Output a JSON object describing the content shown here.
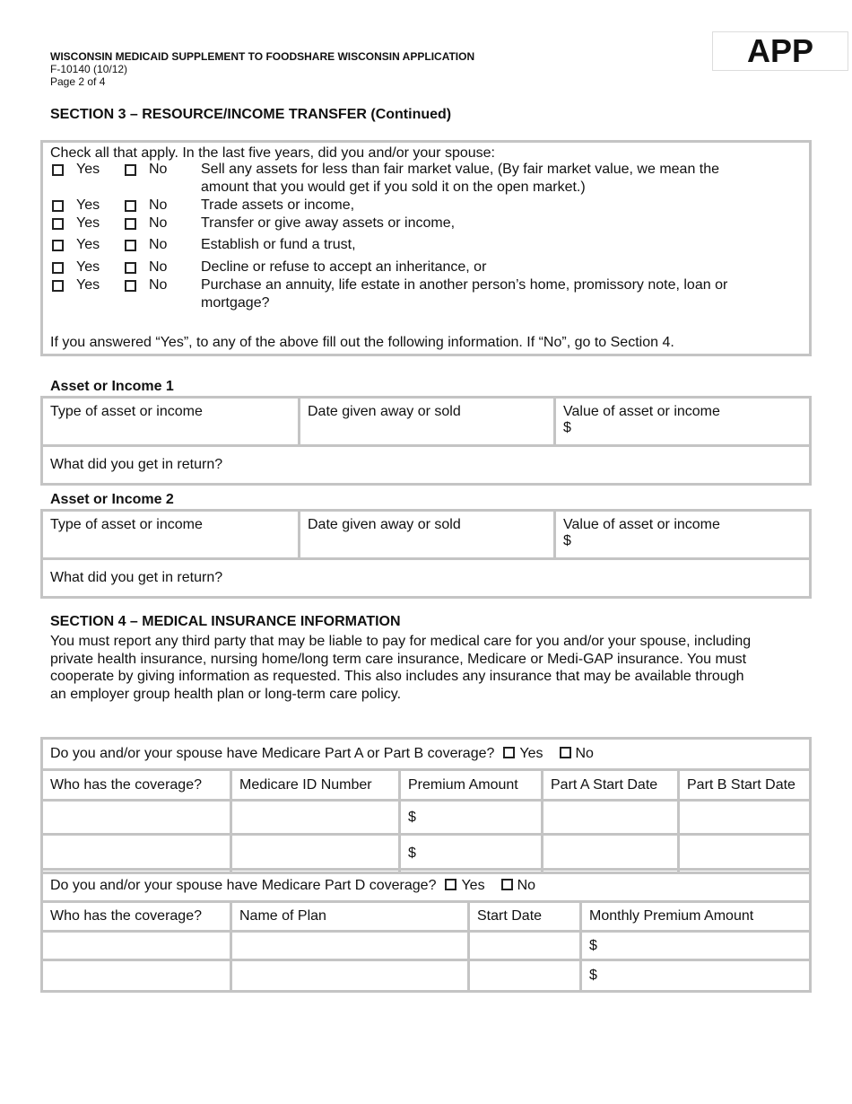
{
  "header": {
    "title": "WISCONSIN MEDICAID SUPPLEMENT TO FOODSHARE WISCONSIN APPLICATION",
    "form_number": "F-10140 (10/12)",
    "page": "Page 2 of 4",
    "badge": "APP"
  },
  "section3": {
    "title": "SECTION 3 – RESOURCE/INCOME TRANSFER (Continued)",
    "intro": "Check all that apply. In the last five years, did you and/or your spouse:",
    "yes": "Yes",
    "no": "No",
    "questions": [
      [
        "Sell any assets for less than fair market value, (By fair market value, we mean the",
        "amount that you would get if you sold it on the open market.)"
      ],
      [
        "Trade assets or income,"
      ],
      [
        "Transfer or give away assets or income,"
      ],
      [
        "Establish or fund a trust,"
      ],
      [
        "Decline or refuse to accept an inheritance, or"
      ],
      [
        "Purchase an annuity, life estate in another person’s home, promissory note, loan or",
        "mortgage?"
      ]
    ],
    "footer": "If you answered “Yes”, to any of the above fill out the following information.  If “No”, go to Section 4."
  },
  "assets": [
    {
      "title": "Asset or Income 1",
      "type": "Type of asset or income",
      "date": "Date given away or sold",
      "value": "Value of asset or income",
      "currency": "$",
      "return": "What did you get in return?"
    },
    {
      "title": "Asset or Income 2",
      "type": "Type of asset or income",
      "date": "Date given away or sold",
      "value": "Value of asset or income",
      "currency": "$",
      "return": "What did you get in return?"
    }
  ],
  "section4": {
    "title": "SECTION 4 – MEDICAL INSURANCE INFORMATION",
    "para": [
      "You must report any third party that may be liable to pay for medical care for you and/or your spouse, including",
      "private health insurance, nursing home/long term care insurance, Medicare or Medi-GAP insurance. You must",
      "cooperate by giving information as requested. This also includes any insurance that may be available through",
      "an employer group health plan or long-term care policy."
    ],
    "partab_q": "Do you and/or your spouse have Medicare Part A or Part B coverage?",
    "partab_cols": [
      "Who has the coverage?",
      "Medicare ID Number",
      "Premium Amount",
      "Part A Start Date",
      "Part B Start Date"
    ],
    "partd_q": "Do you and/or your spouse have Medicare Part D coverage?",
    "partd_cols": [
      "Who has the coverage?",
      "Name of Plan",
      "Start Date",
      "Monthly Premium Amount"
    ],
    "yes": "Yes",
    "no": "No",
    "currency": "$"
  }
}
